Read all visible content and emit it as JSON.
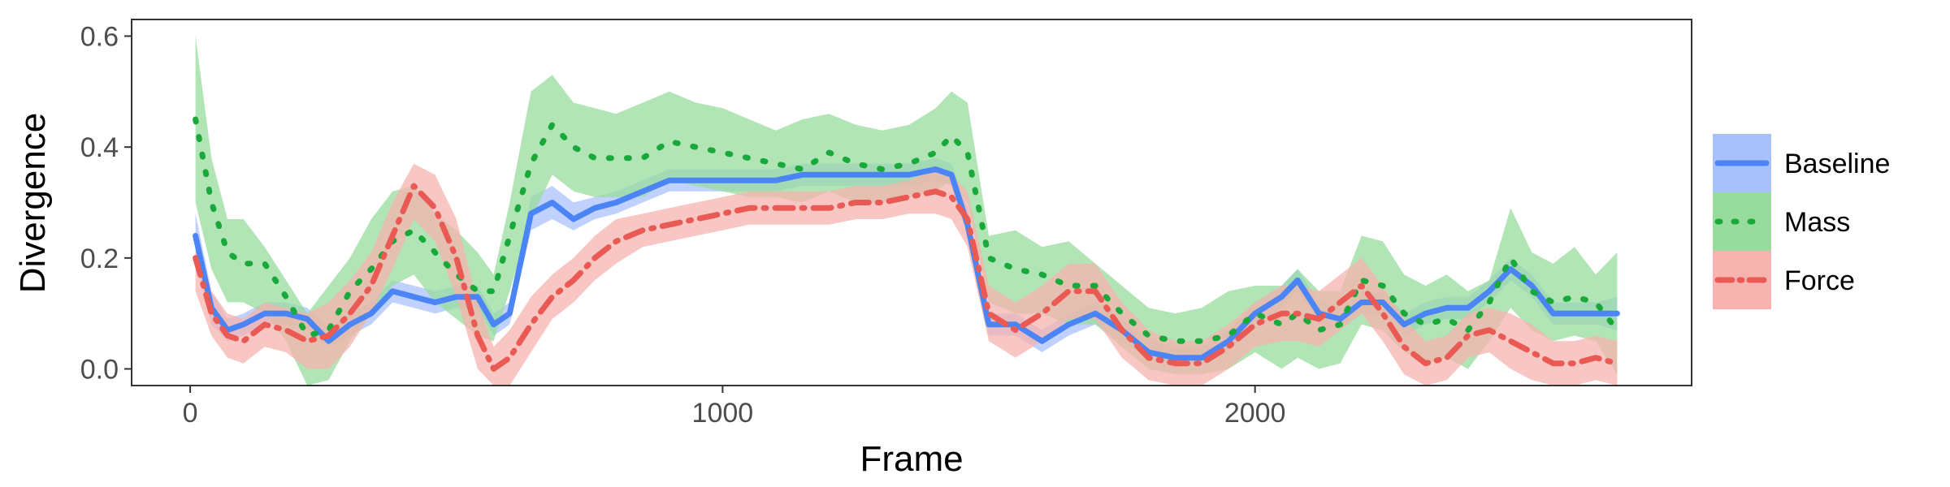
{
  "chart_data": {
    "type": "line",
    "xlabel": "Frame",
    "ylabel": "Divergence",
    "xlim": [
      -110,
      2820
    ],
    "ylim": [
      -0.03,
      0.63
    ],
    "xticks": [
      0,
      1000,
      2000
    ],
    "xtick_labels": [
      "0",
      "1000",
      "2000"
    ],
    "yticks": [
      0.0,
      0.2,
      0.4,
      0.6
    ],
    "ytick_labels": [
      "0.0",
      "0.2",
      "0.4",
      "0.6"
    ],
    "grid": false,
    "legend_position": "right",
    "x": [
      10,
      40,
      70,
      100,
      140,
      180,
      220,
      260,
      300,
      340,
      380,
      420,
      460,
      500,
      540,
      570,
      600,
      640,
      680,
      720,
      760,
      800,
      850,
      900,
      950,
      1000,
      1050,
      1100,
      1150,
      1200,
      1250,
      1300,
      1350,
      1400,
      1430,
      1460,
      1500,
      1550,
      1600,
      1650,
      1700,
      1750,
      1800,
      1850,
      1900,
      1950,
      2000,
      2050,
      2080,
      2120,
      2160,
      2200,
      2240,
      2280,
      2320,
      2360,
      2400,
      2440,
      2480,
      2520,
      2560,
      2600,
      2640,
      2680
    ],
    "series": [
      {
        "name": "Baseline",
        "color": "#4a84f5",
        "band_color": "#a9c1fb",
        "linestyle": "solid",
        "values": [
          0.24,
          0.11,
          0.07,
          0.08,
          0.1,
          0.1,
          0.09,
          0.05,
          0.08,
          0.1,
          0.14,
          0.13,
          0.12,
          0.13,
          0.13,
          0.08,
          0.1,
          0.28,
          0.3,
          0.27,
          0.29,
          0.3,
          0.32,
          0.34,
          0.34,
          0.34,
          0.34,
          0.34,
          0.35,
          0.35,
          0.35,
          0.35,
          0.35,
          0.36,
          0.35,
          0.26,
          0.08,
          0.08,
          0.05,
          0.08,
          0.1,
          0.07,
          0.03,
          0.02,
          0.02,
          0.05,
          0.1,
          0.13,
          0.16,
          0.1,
          0.09,
          0.12,
          0.12,
          0.08,
          0.1,
          0.11,
          0.11,
          0.14,
          0.18,
          0.15,
          0.1,
          0.1,
          0.1,
          0.1
        ],
        "lower": [
          0.2,
          0.08,
          0.05,
          0.06,
          0.08,
          0.08,
          0.07,
          0.04,
          0.06,
          0.08,
          0.12,
          0.11,
          0.1,
          0.11,
          0.11,
          0.06,
          0.08,
          0.25,
          0.27,
          0.25,
          0.27,
          0.28,
          0.3,
          0.32,
          0.32,
          0.32,
          0.32,
          0.32,
          0.33,
          0.33,
          0.33,
          0.33,
          0.33,
          0.34,
          0.33,
          0.24,
          0.06,
          0.06,
          0.03,
          0.06,
          0.08,
          0.05,
          0.02,
          0.01,
          0.01,
          0.03,
          0.08,
          0.11,
          0.14,
          0.08,
          0.07,
          0.1,
          0.1,
          0.06,
          0.08,
          0.09,
          0.09,
          0.12,
          0.16,
          0.13,
          0.08,
          0.08,
          0.08,
          0.07
        ],
        "upper": [
          0.28,
          0.14,
          0.09,
          0.1,
          0.12,
          0.12,
          0.11,
          0.07,
          0.1,
          0.12,
          0.16,
          0.15,
          0.14,
          0.15,
          0.15,
          0.1,
          0.12,
          0.31,
          0.33,
          0.3,
          0.31,
          0.32,
          0.34,
          0.36,
          0.36,
          0.36,
          0.36,
          0.36,
          0.37,
          0.37,
          0.37,
          0.37,
          0.37,
          0.38,
          0.37,
          0.29,
          0.1,
          0.1,
          0.07,
          0.1,
          0.12,
          0.09,
          0.05,
          0.04,
          0.04,
          0.07,
          0.12,
          0.15,
          0.18,
          0.12,
          0.11,
          0.14,
          0.14,
          0.1,
          0.12,
          0.13,
          0.13,
          0.16,
          0.2,
          0.17,
          0.12,
          0.12,
          0.12,
          0.13
        ]
      },
      {
        "name": "Mass",
        "color": "#19a93a",
        "band_color": "#98dc9d",
        "linestyle": "dotted",
        "values": [
          0.45,
          0.3,
          0.21,
          0.19,
          0.19,
          0.13,
          0.06,
          0.07,
          0.14,
          0.18,
          0.23,
          0.25,
          0.21,
          0.17,
          0.14,
          0.14,
          0.24,
          0.37,
          0.44,
          0.4,
          0.38,
          0.38,
          0.38,
          0.41,
          0.4,
          0.39,
          0.38,
          0.37,
          0.36,
          0.39,
          0.37,
          0.36,
          0.37,
          0.39,
          0.42,
          0.39,
          0.2,
          0.18,
          0.17,
          0.15,
          0.15,
          0.1,
          0.06,
          0.05,
          0.05,
          0.06,
          0.1,
          0.08,
          0.1,
          0.07,
          0.08,
          0.16,
          0.15,
          0.1,
          0.08,
          0.09,
          0.07,
          0.12,
          0.2,
          0.14,
          0.12,
          0.13,
          0.12,
          0.07
        ],
        "lower": [
          0.3,
          0.18,
          0.12,
          0.12,
          0.1,
          0.05,
          -0.03,
          -0.02,
          0.05,
          0.1,
          0.15,
          0.17,
          0.12,
          0.09,
          0.06,
          0.05,
          0.14,
          0.27,
          0.35,
          0.32,
          0.31,
          0.31,
          0.31,
          0.34,
          0.33,
          0.32,
          0.31,
          0.31,
          0.3,
          0.32,
          0.3,
          0.3,
          0.31,
          0.32,
          0.34,
          0.3,
          0.12,
          0.1,
          0.1,
          0.08,
          0.08,
          0.04,
          0.0,
          -0.01,
          -0.01,
          0.0,
          0.03,
          0.0,
          0.02,
          0.0,
          0.01,
          0.08,
          0.07,
          0.03,
          0.01,
          0.02,
          0.0,
          0.05,
          0.11,
          0.07,
          0.05,
          0.06,
          0.05,
          -0.01
        ],
        "upper": [
          0.6,
          0.38,
          0.27,
          0.27,
          0.22,
          0.16,
          0.1,
          0.15,
          0.2,
          0.27,
          0.32,
          0.33,
          0.28,
          0.25,
          0.21,
          0.17,
          0.3,
          0.5,
          0.53,
          0.48,
          0.47,
          0.46,
          0.48,
          0.5,
          0.48,
          0.47,
          0.45,
          0.43,
          0.45,
          0.46,
          0.44,
          0.43,
          0.44,
          0.47,
          0.5,
          0.48,
          0.24,
          0.25,
          0.22,
          0.23,
          0.19,
          0.15,
          0.11,
          0.1,
          0.11,
          0.14,
          0.15,
          0.15,
          0.18,
          0.14,
          0.14,
          0.24,
          0.23,
          0.17,
          0.15,
          0.17,
          0.14,
          0.16,
          0.29,
          0.21,
          0.19,
          0.22,
          0.17,
          0.21
        ]
      },
      {
        "name": "Force",
        "color": "#ea5a54",
        "band_color": "#f6b3af",
        "linestyle": "dashdot",
        "values": [
          0.2,
          0.1,
          0.06,
          0.05,
          0.08,
          0.07,
          0.05,
          0.06,
          0.1,
          0.15,
          0.24,
          0.33,
          0.29,
          0.2,
          0.06,
          0.0,
          0.02,
          0.08,
          0.13,
          0.16,
          0.2,
          0.23,
          0.25,
          0.26,
          0.27,
          0.28,
          0.29,
          0.29,
          0.29,
          0.29,
          0.3,
          0.3,
          0.31,
          0.32,
          0.31,
          0.27,
          0.1,
          0.07,
          0.1,
          0.14,
          0.14,
          0.07,
          0.02,
          0.01,
          0.01,
          0.04,
          0.08,
          0.1,
          0.1,
          0.09,
          0.12,
          0.15,
          0.1,
          0.04,
          0.01,
          0.02,
          0.06,
          0.07,
          0.05,
          0.03,
          0.01,
          0.01,
          0.02,
          0.01
        ],
        "lower": [
          0.14,
          0.06,
          0.02,
          0.01,
          0.04,
          0.03,
          0.0,
          0.0,
          0.04,
          0.1,
          0.18,
          0.27,
          0.23,
          0.13,
          0.0,
          -0.03,
          -0.03,
          0.03,
          0.09,
          0.12,
          0.16,
          0.19,
          0.22,
          0.23,
          0.24,
          0.25,
          0.26,
          0.26,
          0.26,
          0.26,
          0.27,
          0.27,
          0.28,
          0.28,
          0.27,
          0.22,
          0.05,
          0.02,
          0.05,
          0.09,
          0.09,
          0.02,
          -0.02,
          -0.03,
          -0.03,
          0.0,
          0.04,
          0.05,
          0.05,
          0.04,
          0.07,
          0.1,
          0.05,
          -0.01,
          -0.03,
          -0.02,
          0.02,
          0.03,
          0.0,
          -0.02,
          -0.03,
          -0.03,
          -0.02,
          -0.03
        ],
        "upper": [
          0.25,
          0.14,
          0.1,
          0.09,
          0.12,
          0.11,
          0.1,
          0.12,
          0.16,
          0.21,
          0.3,
          0.37,
          0.35,
          0.27,
          0.12,
          0.04,
          0.07,
          0.13,
          0.17,
          0.2,
          0.24,
          0.27,
          0.28,
          0.29,
          0.3,
          0.31,
          0.32,
          0.32,
          0.32,
          0.32,
          0.33,
          0.33,
          0.34,
          0.36,
          0.35,
          0.32,
          0.15,
          0.12,
          0.15,
          0.19,
          0.19,
          0.12,
          0.07,
          0.05,
          0.05,
          0.08,
          0.12,
          0.15,
          0.15,
          0.14,
          0.17,
          0.2,
          0.15,
          0.09,
          0.05,
          0.06,
          0.1,
          0.11,
          0.1,
          0.08,
          0.05,
          0.05,
          0.06,
          0.05
        ]
      }
    ]
  }
}
